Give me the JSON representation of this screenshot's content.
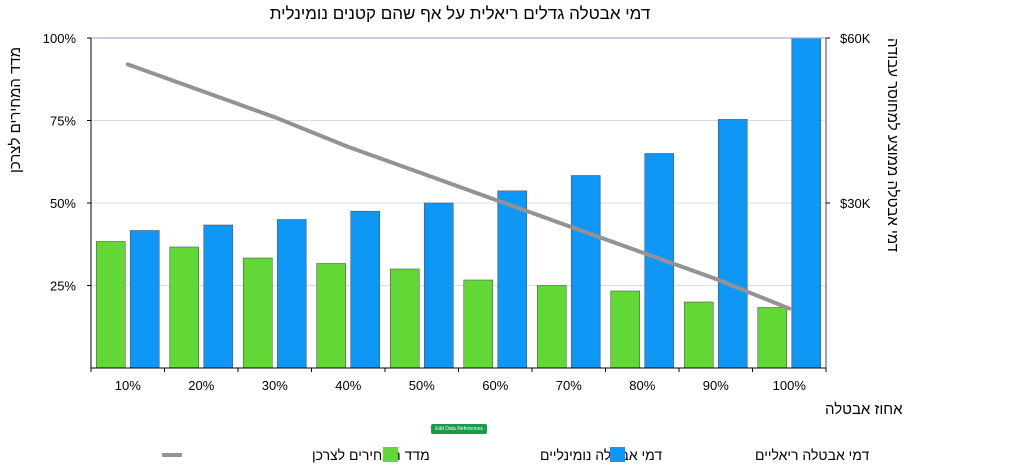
{
  "chart_data": {
    "type": "bar",
    "title": "דמי אבטלה גדלים ריאלית על אף שהם קטנים נומינלית",
    "xlabel": "אחוז אבטלה",
    "ylabel_left": "מדד המחירים לצרכן",
    "ylabel_right": "דמי אבטלה ממוצע למחוסר עבודה",
    "categories": [
      "10%",
      "20%",
      "30%",
      "40%",
      "50%",
      "60%",
      "70%",
      "80%",
      "90%",
      "100%"
    ],
    "left_axis": {
      "min": 0,
      "max": 100,
      "ticks": [
        25,
        50,
        75,
        100
      ],
      "tick_labels": [
        "25%",
        "50%",
        "75%",
        "100%"
      ]
    },
    "right_axis": {
      "min": 0,
      "max": 60000,
      "ticks": [
        30000,
        60000
      ],
      "tick_labels": [
        "$30K",
        "$60K"
      ]
    },
    "series": [
      {
        "name": "דמי אבטלה נומינליים",
        "kind": "bar",
        "axis": "right",
        "color": "#61d836",
        "values": [
          23000,
          22000,
          20000,
          19000,
          18000,
          16000,
          15000,
          14000,
          12000,
          11000
        ]
      },
      {
        "name": "דמי אבטלה ריאליים",
        "kind": "bar",
        "axis": "right",
        "color": "#0f97f5",
        "values": [
          25000,
          26000,
          27000,
          28500,
          30000,
          32200,
          35000,
          39000,
          45200,
          60000
        ]
      },
      {
        "name": "מדד המחירים לצרכן",
        "kind": "line",
        "axis": "left",
        "color": "#939393",
        "values": [
          92,
          84,
          76,
          67,
          59,
          51,
          43,
          35,
          27,
          18
        ]
      }
    ],
    "grid": true,
    "legend_position": "bottom"
  },
  "ui": {
    "edit_button_label": "Edit Data References"
  }
}
